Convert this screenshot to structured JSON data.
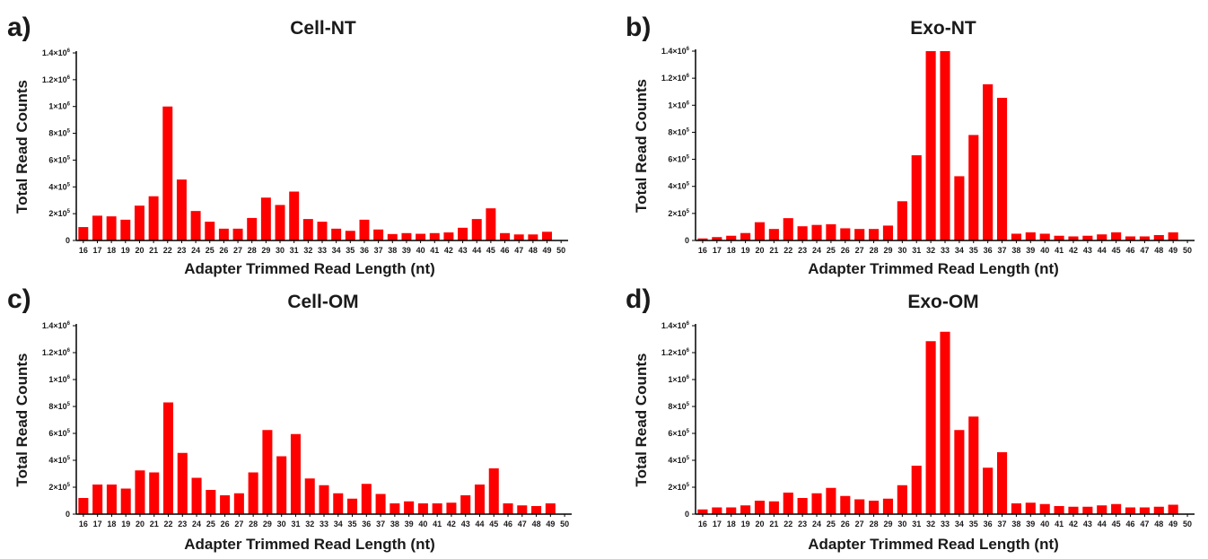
{
  "chart_data": [
    {
      "type": "bar",
      "panel_label": "a)",
      "title": "Cell-NT",
      "xlabel": "Adapter Trimmed Read Length (nt)",
      "ylabel": "Total Read Counts",
      "ylim": [
        0,
        1400000
      ],
      "yticks": [
        {
          "value": 0,
          "base": "0",
          "exp": ""
        },
        {
          "value": 200000,
          "base": "2×10",
          "exp": "5"
        },
        {
          "value": 400000,
          "base": "4×10",
          "exp": "5"
        },
        {
          "value": 600000,
          "base": "6×10",
          "exp": "5"
        },
        {
          "value": 800000,
          "base": "8×10",
          "exp": "5"
        },
        {
          "value": 1000000,
          "base": "1×10",
          "exp": "6"
        },
        {
          "value": 1200000,
          "base": "1.2×10",
          "exp": "6"
        },
        {
          "value": 1400000,
          "base": "1.4×10",
          "exp": "6"
        }
      ],
      "bar_color": "#ff0000",
      "categories": [
        "16",
        "17",
        "18",
        "19",
        "20",
        "21",
        "22",
        "23",
        "24",
        "25",
        "26",
        "27",
        "28",
        "29",
        "30",
        "31",
        "32",
        "33",
        "34",
        "35",
        "36",
        "37",
        "38",
        "39",
        "40",
        "41",
        "42",
        "43",
        "44",
        "45",
        "46",
        "47",
        "48",
        "49",
        "50"
      ],
      "values": [
        100000,
        185000,
        180000,
        155000,
        260000,
        330000,
        1000000,
        455000,
        220000,
        140000,
        88000,
        88000,
        168000,
        320000,
        265000,
        365000,
        160000,
        140000,
        88000,
        72000,
        155000,
        82000,
        48000,
        55000,
        50000,
        55000,
        60000,
        95000,
        160000,
        240000,
        55000,
        45000,
        45000,
        65000,
        0
      ]
    },
    {
      "type": "bar",
      "panel_label": "b)",
      "title": "Exo-NT",
      "xlabel": "Adapter Trimmed Read Length (nt)",
      "ylabel": "Total Read Counts",
      "ylim": [
        0,
        1400000
      ],
      "yticks": [
        {
          "value": 0,
          "base": "0",
          "exp": ""
        },
        {
          "value": 200000,
          "base": "2×10",
          "exp": "5"
        },
        {
          "value": 400000,
          "base": "4×10",
          "exp": "5"
        },
        {
          "value": 600000,
          "base": "6×10",
          "exp": "5"
        },
        {
          "value": 800000,
          "base": "8×10",
          "exp": "5"
        },
        {
          "value": 1000000,
          "base": "1×10",
          "exp": "6"
        },
        {
          "value": 1200000,
          "base": "1.2×10",
          "exp": "6"
        },
        {
          "value": 1400000,
          "base": "1.4×10",
          "exp": "6"
        }
      ],
      "bar_color": "#ff0000",
      "categories": [
        "16",
        "17",
        "18",
        "19",
        "20",
        "21",
        "22",
        "23",
        "24",
        "25",
        "26",
        "27",
        "28",
        "29",
        "30",
        "31",
        "32",
        "33",
        "34",
        "35",
        "36",
        "37",
        "38",
        "39",
        "40",
        "41",
        "42",
        "43",
        "44",
        "45",
        "46",
        "47",
        "48",
        "49",
        "50"
      ],
      "values": [
        15000,
        25000,
        35000,
        55000,
        135000,
        85000,
        165000,
        105000,
        115000,
        120000,
        90000,
        85000,
        85000,
        110000,
        290000,
        630000,
        1400000,
        1400000,
        475000,
        780000,
        1155000,
        1055000,
        50000,
        60000,
        50000,
        35000,
        30000,
        35000,
        45000,
        60000,
        30000,
        30000,
        40000,
        60000,
        0
      ]
    },
    {
      "type": "bar",
      "panel_label": "c)",
      "title": "Cell-OM",
      "xlabel": "Adapter Trimmed Read Length (nt)",
      "ylabel": "Total Read Counts",
      "ylim": [
        0,
        1400000
      ],
      "yticks": [
        {
          "value": 0,
          "base": "0",
          "exp": ""
        },
        {
          "value": 200000,
          "base": "2×10",
          "exp": "5"
        },
        {
          "value": 400000,
          "base": "4×10",
          "exp": "5"
        },
        {
          "value": 600000,
          "base": "6×10",
          "exp": "5"
        },
        {
          "value": 800000,
          "base": "8×10",
          "exp": "5"
        },
        {
          "value": 1000000,
          "base": "1×10",
          "exp": "6"
        },
        {
          "value": 1200000,
          "base": "1.2×10",
          "exp": "6"
        },
        {
          "value": 1400000,
          "base": "1.4×10",
          "exp": "6"
        }
      ],
      "bar_color": "#ff0000",
      "categories": [
        "16",
        "17",
        "18",
        "19",
        "20",
        "21",
        "22",
        "23",
        "24",
        "25",
        "26",
        "27",
        "28",
        "29",
        "30",
        "31",
        "32",
        "33",
        "34",
        "35",
        "36",
        "37",
        "38",
        "39",
        "40",
        "41",
        "42",
        "43",
        "44",
        "45",
        "46",
        "47",
        "48",
        "49",
        "50"
      ],
      "values": [
        120000,
        220000,
        220000,
        190000,
        325000,
        310000,
        830000,
        455000,
        270000,
        180000,
        140000,
        155000,
        310000,
        625000,
        430000,
        595000,
        265000,
        215000,
        155000,
        115000,
        225000,
        150000,
        80000,
        95000,
        80000,
        80000,
        85000,
        140000,
        220000,
        340000,
        80000,
        65000,
        60000,
        80000,
        0
      ]
    },
    {
      "type": "bar",
      "panel_label": "d)",
      "title": "Exo-OM",
      "xlabel": "Adapter Trimmed Read Length (nt)",
      "ylabel": "Total Read Counts",
      "ylim": [
        0,
        1400000
      ],
      "yticks": [
        {
          "value": 0,
          "base": "0",
          "exp": ""
        },
        {
          "value": 200000,
          "base": "2×10",
          "exp": "5"
        },
        {
          "value": 400000,
          "base": "4×10",
          "exp": "5"
        },
        {
          "value": 600000,
          "base": "6×10",
          "exp": "5"
        },
        {
          "value": 800000,
          "base": "8×10",
          "exp": "5"
        },
        {
          "value": 1000000,
          "base": "1×10",
          "exp": "6"
        },
        {
          "value": 1200000,
          "base": "1.2×10",
          "exp": "6"
        },
        {
          "value": 1400000,
          "base": "1.4×10",
          "exp": "6"
        }
      ],
      "bar_color": "#ff0000",
      "categories": [
        "16",
        "17",
        "18",
        "19",
        "20",
        "21",
        "22",
        "23",
        "24",
        "25",
        "26",
        "27",
        "28",
        "29",
        "30",
        "31",
        "32",
        "33",
        "34",
        "35",
        "36",
        "37",
        "38",
        "39",
        "40",
        "41",
        "42",
        "43",
        "44",
        "45",
        "46",
        "47",
        "48",
        "49",
        "50"
      ],
      "values": [
        35000,
        50000,
        50000,
        65000,
        100000,
        95000,
        160000,
        120000,
        155000,
        195000,
        135000,
        110000,
        100000,
        115000,
        215000,
        360000,
        1285000,
        1355000,
        625000,
        725000,
        345000,
        460000,
        80000,
        85000,
        75000,
        60000,
        55000,
        55000,
        65000,
        75000,
        50000,
        50000,
        55000,
        70000,
        0
      ]
    }
  ]
}
